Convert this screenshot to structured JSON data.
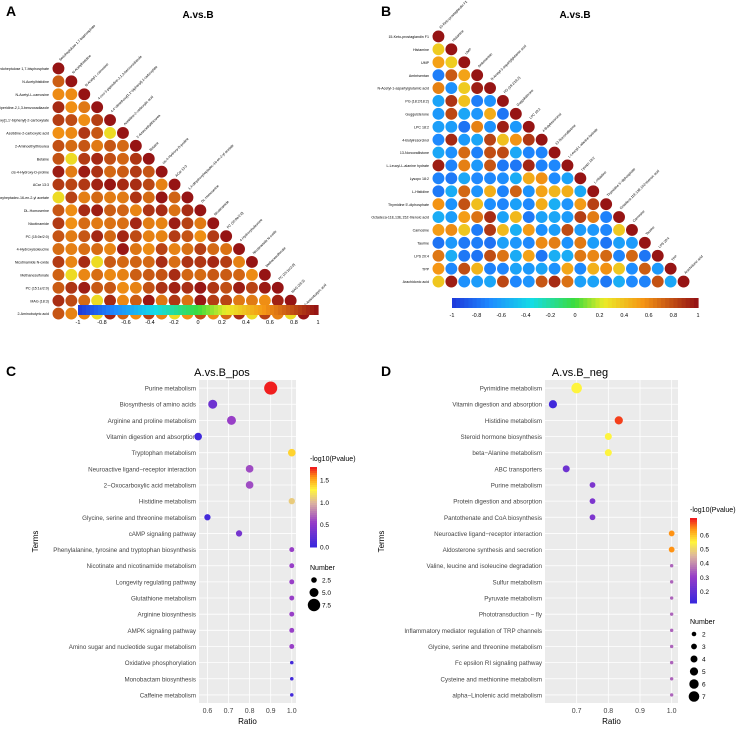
{
  "panels": [
    {
      "letter": "A",
      "title": "A.vs.B",
      "type": "heatmap",
      "colorbar_ticks": [
        "-1",
        "-0.8",
        "-0.6",
        "-0.4",
        "-0.2",
        "0",
        "0.2",
        "0.4",
        "0.6",
        "0.8",
        "1"
      ]
    },
    {
      "letter": "B",
      "title": "A.vs.B",
      "type": "heatmap",
      "colorbar_ticks": [
        "-1",
        "-0.8",
        "-0.6",
        "-0.4",
        "-0.2",
        "0",
        "0.2",
        "0.4",
        "0.6",
        "0.8",
        "1"
      ]
    },
    {
      "letter": "C",
      "title": "A.vs.B_pos",
      "type": "scatter"
    },
    {
      "letter": "D",
      "title": "A.vs.B_neg",
      "type": "scatter"
    }
  ],
  "chart_data": [
    {
      "type": "heatmap",
      "title": "A.vs.B",
      "labels": [
        "Sedoheptulose 1,7-bisphosphate",
        "N-Acetylhistidine",
        "N-Acetyl-L-carnosine",
        "4-oxo-1-piperidine-2,1,3-benzoxadiazole",
        "4,4'-dimethoxy[1,1'-biphenyl]-2-carboxylate",
        "Azetidine-2-carboxylic acid",
        "2-Aminoethylthiourea",
        "Betaine",
        "cis-4-Hydroxy-D-proline",
        "ACar 13:3",
        "1,4-dihydroxyheptadec-16-en-2-yl acetate",
        "DL-Homoserine",
        "Nicotinamide",
        "PC (15:0e/2:0)",
        "4-Hydroxyisoleucine",
        "Nicotinamide N-oxide",
        "Methanesulfonate",
        "PC (15:1e/2:0)",
        "MAG (18:3)",
        "2-Aminobutyric acid"
      ],
      "mostly_positive": true,
      "legend": "correlation color scale -1 to 1"
    },
    {
      "type": "heatmap",
      "title": "A.vs.B",
      "labels": [
        "15-Keto-prostaglandin F1",
        "Histamine",
        "UMP",
        "Ambrisentan",
        "N-Acetyl-1-aspartylglutamic acid",
        "PG (18:2/18:2)",
        "Guggulsterone",
        "LPC 18:2",
        "4-Butylresorcinol",
        "13-Norcorallistone",
        "L-Leucyl-L-alanine hydrate",
        "Lysopc 18:2",
        "L-Histidine",
        "Thymidine 5'-diphosphate",
        "Octadeca-11E,13E,15Z-trienoic acid",
        "Carnosine",
        "Taurine",
        "LPS 20:4",
        "TPP",
        "Arachidonic acid"
      ],
      "mostly_positive": false,
      "legend": "correlation color scale -1 to 1"
    },
    {
      "type": "scatter",
      "title": "A.vs.B_pos",
      "xlabel": "Ratio",
      "ylabel": "Terms",
      "x_ticks": [
        "0.6",
        "0.7",
        "0.8",
        "0.9",
        "1.0"
      ],
      "xlim": [
        0.56,
        1.02
      ],
      "color_label": "-log10(Pvalue)",
      "color_ticks": [
        "1.5",
        "1.0",
        "0.5",
        "0.0"
      ],
      "color_range": [
        0,
        1.8
      ],
      "size_label": "Number",
      "size_ticks": [
        "2.5",
        "5.0",
        "7.5"
      ],
      "points": [
        {
          "term": "Purine metabolism",
          "x": 0.9,
          "p": 1.85,
          "n": 8
        },
        {
          "term": "Biosynthesis of amino acids",
          "x": 0.625,
          "p": 0.3,
          "n": 5
        },
        {
          "term": "Arginine and proline metabolism",
          "x": 0.714,
          "p": 0.55,
          "n": 5
        },
        {
          "term": "Vitamin digestion and absorption",
          "x": 0.556,
          "p": 0.02,
          "n": 4
        },
        {
          "term": "Tryptophan metabolism",
          "x": 1.0,
          "p": 1.4,
          "n": 4
        },
        {
          "term": "Neuroactive ligand−receptor interaction",
          "x": 0.8,
          "p": 0.6,
          "n": 4
        },
        {
          "term": "2−Oxocarboxylic acid metabolism",
          "x": 0.8,
          "p": 0.6,
          "n": 4
        },
        {
          "term": "Histidine metabolism",
          "x": 1.0,
          "p": 1.1,
          "n": 3
        },
        {
          "term": "Glycine, serine and threonine metabolism",
          "x": 0.6,
          "p": 0.05,
          "n": 3
        },
        {
          "term": "cAMP signaling pathway",
          "x": 0.75,
          "p": 0.35,
          "n": 3
        },
        {
          "term": "Phenylalanine, tyrosine and tryptophan biosynthesis",
          "x": 1.0,
          "p": 0.55,
          "n": 2
        },
        {
          "term": "Nicotinate and nicotinamide metabolism",
          "x": 1.0,
          "p": 0.55,
          "n": 2
        },
        {
          "term": "Longevity regulating pathway",
          "x": 1.0,
          "p": 0.55,
          "n": 2
        },
        {
          "term": "Glutathione metabolism",
          "x": 1.0,
          "p": 0.55,
          "n": 2
        },
        {
          "term": "Arginine biosynthesis",
          "x": 1.0,
          "p": 0.55,
          "n": 2
        },
        {
          "term": "AMPK signaling pathway",
          "x": 1.0,
          "p": 0.55,
          "n": 2
        },
        {
          "term": "Amino sugar and nucleotide sugar metabolism",
          "x": 1.0,
          "p": 0.55,
          "n": 2
        },
        {
          "term": "Oxidative phosphorylation",
          "x": 1.0,
          "p": 0.05,
          "n": 1
        },
        {
          "term": "Monobactam biosynthesis",
          "x": 1.0,
          "p": 0.05,
          "n": 1
        },
        {
          "term": "Caffeine metabolism",
          "x": 1.0,
          "p": 0.05,
          "n": 1
        }
      ]
    },
    {
      "type": "scatter",
      "title": "A.vs.B_neg",
      "xlabel": "Ratio",
      "ylabel": "Terms",
      "x_ticks": [
        "0.7",
        "0.8",
        "0.9",
        "1.0"
      ],
      "xlim": [
        0.6,
        1.02
      ],
      "color_label": "-log10(Pvalue)",
      "color_ticks": [
        "0.6",
        "0.5",
        "0.4",
        "0.3",
        "0.2"
      ],
      "color_range": [
        0.12,
        0.72
      ],
      "size_label": "Number",
      "size_ticks": [
        "2",
        "3",
        "4",
        "5",
        "6",
        "7"
      ],
      "points": [
        {
          "term": "Pyrimidine metabolism",
          "x": 0.7,
          "p": 0.55,
          "n": 7
        },
        {
          "term": "Vitamin digestion and absorption",
          "x": 0.625,
          "p": 0.13,
          "n": 5
        },
        {
          "term": "Histidine metabolism",
          "x": 0.833,
          "p": 0.7,
          "n": 5
        },
        {
          "term": "Steroid hormone biosynthesis",
          "x": 0.8,
          "p": 0.55,
          "n": 4
        },
        {
          "term": "beta−Alanine metabolism",
          "x": 0.8,
          "p": 0.55,
          "n": 4
        },
        {
          "term": "ABC transporters",
          "x": 0.667,
          "p": 0.22,
          "n": 4
        },
        {
          "term": "Purine metabolism",
          "x": 0.75,
          "p": 0.25,
          "n": 3
        },
        {
          "term": "Protein digestion and absorption",
          "x": 0.75,
          "p": 0.25,
          "n": 3
        },
        {
          "term": "Pantothenate and CoA biosynthesis",
          "x": 0.75,
          "p": 0.25,
          "n": 3
        },
        {
          "term": "Neuroactive ligand−receptor interaction",
          "x": 1.0,
          "p": 0.65,
          "n": 3
        },
        {
          "term": "Aldosterone synthesis and secretion",
          "x": 1.0,
          "p": 0.65,
          "n": 3
        },
        {
          "term": "Valine, leucine and isoleucine degradation",
          "x": 1.0,
          "p": 0.35,
          "n": 1
        },
        {
          "term": "Sulfur metabolism",
          "x": 1.0,
          "p": 0.35,
          "n": 1
        },
        {
          "term": "Pyruvate metabolism",
          "x": 1.0,
          "p": 0.35,
          "n": 1
        },
        {
          "term": "Phototransduction − fly",
          "x": 1.0,
          "p": 0.35,
          "n": 1
        },
        {
          "term": "Inflammatory mediator regulation of TRP channels",
          "x": 1.0,
          "p": 0.35,
          "n": 1
        },
        {
          "term": "Glycine, serine and threonine metabolism",
          "x": 1.0,
          "p": 0.35,
          "n": 1
        },
        {
          "term": "Fc epsilon RI signaling pathway",
          "x": 1.0,
          "p": 0.35,
          "n": 1
        },
        {
          "term": "Cysteine and methionine metabolism",
          "x": 1.0,
          "p": 0.35,
          "n": 1
        },
        {
          "term": "alpha−Linolenic acid metabolism",
          "x": 1.0,
          "p": 0.35,
          "n": 1
        }
      ]
    }
  ]
}
